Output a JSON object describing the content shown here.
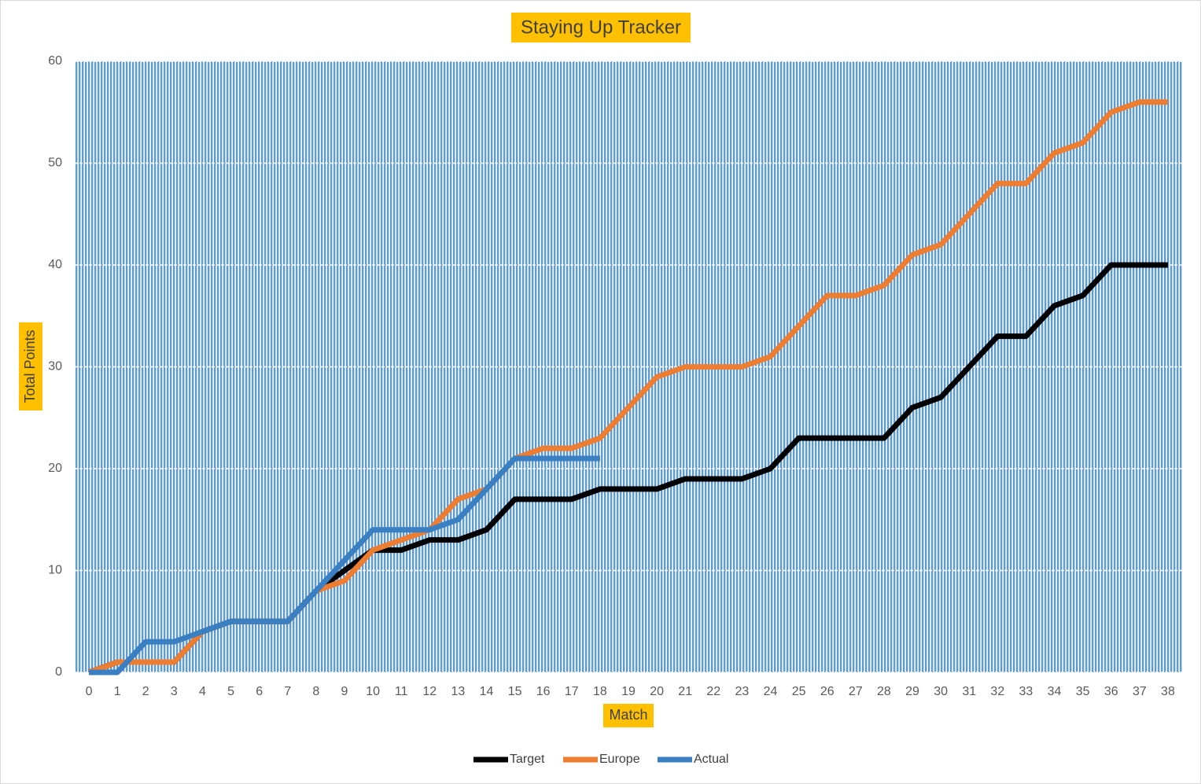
{
  "chart_data": {
    "type": "line",
    "title": "Staying Up Tracker",
    "x_label": "Match",
    "y_label": "Total Points",
    "categories": [
      0,
      1,
      2,
      3,
      4,
      5,
      6,
      7,
      8,
      9,
      10,
      11,
      12,
      13,
      14,
      15,
      16,
      17,
      18,
      19,
      20,
      21,
      22,
      23,
      24,
      25,
      26,
      27,
      28,
      29,
      30,
      31,
      32,
      33,
      34,
      35,
      36,
      37,
      38
    ],
    "series": [
      {
        "name": "Target",
        "color": "#000000",
        "values": [
          0,
          1,
          1,
          1,
          4,
          5,
          5,
          5,
          8,
          10,
          12,
          12,
          13,
          13,
          14,
          17,
          17,
          17,
          18,
          18,
          18,
          19,
          19,
          19,
          20,
          23,
          23,
          23,
          23,
          26,
          27,
          30,
          33,
          33,
          36,
          37,
          40,
          40,
          40
        ]
      },
      {
        "name": "Europe",
        "color": "#ed7d31",
        "values": [
          0,
          1,
          1,
          1,
          4,
          5,
          5,
          5,
          8,
          9,
          12,
          13,
          14,
          17,
          18,
          21,
          22,
          22,
          23,
          26,
          29,
          30,
          30,
          30,
          31,
          34,
          37,
          37,
          38,
          41,
          42,
          45,
          48,
          48,
          51,
          52,
          55,
          56,
          56
        ]
      },
      {
        "name": "Actual",
        "color": "#3a7fc1",
        "values": [
          0,
          0,
          3,
          3,
          4,
          5,
          5,
          5,
          8,
          11,
          14,
          14,
          14,
          15,
          18,
          21,
          21,
          21,
          21,
          null,
          null,
          null,
          null,
          null,
          null,
          null,
          null,
          null,
          null,
          null,
          null,
          null,
          null,
          null,
          null,
          null,
          null,
          null,
          null
        ]
      }
    ],
    "ylim": [
      0,
      60
    ],
    "yticks": [
      0,
      10,
      20,
      30,
      40,
      50,
      60
    ],
    "grid": true,
    "legend": "bottom"
  }
}
